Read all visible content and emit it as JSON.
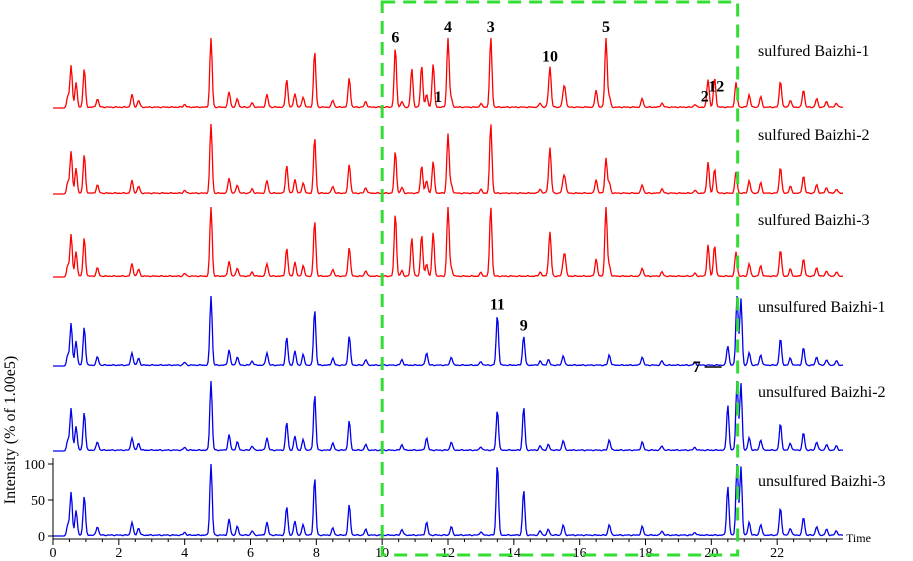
{
  "chart_data": {
    "type": "line",
    "title": "",
    "ylabel": "Intensity (% of 1.00e5)",
    "xlabel": "Time",
    "xlim": [
      0,
      24
    ],
    "ylim": [
      0,
      100
    ],
    "x_ticks": [
      0,
      2,
      4,
      6,
      8,
      10,
      12,
      14,
      16,
      18,
      20,
      22
    ],
    "x_tick_labels": [
      "0",
      "2",
      "4",
      "6",
      "8",
      "10",
      "12",
      "14",
      "16",
      "18",
      "20",
      "22"
    ],
    "y_ticks": [
      0,
      50,
      100
    ],
    "y_tick_labels": [
      "0",
      "50",
      "100"
    ],
    "highlight_region": {
      "x": [
        10,
        20.8
      ],
      "color": "#33dd33",
      "style": "dashed"
    },
    "colors": {
      "sulfured": "#ff0000",
      "unsulfured": "#0000ee",
      "highlight": "#33dd33"
    },
    "common_peaks": [
      [
        0.45,
        15
      ],
      [
        0.55,
        60
      ],
      [
        0.7,
        35
      ],
      [
        0.95,
        55
      ],
      [
        1.35,
        12
      ],
      [
        2.4,
        18
      ],
      [
        2.6,
        10
      ],
      [
        4.0,
        4
      ],
      [
        4.8,
        100
      ],
      [
        5.35,
        22
      ],
      [
        5.6,
        12
      ],
      [
        6.05,
        6
      ],
      [
        6.5,
        18
      ],
      [
        7.1,
        40
      ],
      [
        7.35,
        20
      ],
      [
        7.6,
        15
      ],
      [
        7.95,
        80
      ],
      [
        8.5,
        10
      ],
      [
        9.0,
        42
      ],
      [
        9.5,
        8
      ],
      [
        10.6,
        8
      ],
      [
        11.35,
        18
      ],
      [
        12.1,
        12
      ],
      [
        13.0,
        5
      ],
      [
        14.8,
        6
      ],
      [
        15.05,
        8
      ],
      [
        15.5,
        14
      ],
      [
        16.9,
        15
      ],
      [
        17.9,
        12
      ],
      [
        18.5,
        6
      ],
      [
        19.5,
        4
      ],
      [
        21.15,
        18
      ],
      [
        21.5,
        15
      ],
      [
        22.1,
        38
      ],
      [
        22.4,
        10
      ],
      [
        22.8,
        25
      ],
      [
        23.2,
        12
      ],
      [
        23.5,
        8
      ],
      [
        23.8,
        6
      ]
    ],
    "series": [
      {
        "name": "sulfured Baizhi-1",
        "color": "#ff0000",
        "peaks": [
          [
            10.4,
            85
          ],
          [
            10.9,
            55
          ],
          [
            11.2,
            60
          ],
          [
            11.55,
            62
          ],
          [
            12.0,
            100
          ],
          [
            13.3,
            100
          ],
          [
            15.1,
            55
          ],
          [
            15.55,
            25
          ],
          [
            16.5,
            25
          ],
          [
            16.8,
            100
          ],
          [
            19.9,
            40
          ],
          [
            20.1,
            42
          ],
          [
            20.75,
            35
          ]
        ]
      },
      {
        "name": "sulfured Baizhi-2",
        "color": "#ff0000",
        "peaks": [
          [
            10.4,
            60
          ],
          [
            11.2,
            40
          ],
          [
            11.55,
            45
          ],
          [
            12.0,
            85
          ],
          [
            13.3,
            100
          ],
          [
            15.1,
            62
          ],
          [
            15.55,
            20
          ],
          [
            16.5,
            20
          ],
          [
            16.8,
            50
          ],
          [
            19.9,
            45
          ],
          [
            20.1,
            35
          ],
          [
            20.75,
            30
          ]
        ]
      },
      {
        "name": "sulfured Baizhi-3",
        "color": "#ff0000",
        "peaks": [
          [
            10.4,
            90
          ],
          [
            10.9,
            55
          ],
          [
            11.2,
            60
          ],
          [
            11.55,
            62
          ],
          [
            12.0,
            100
          ],
          [
            13.3,
            100
          ],
          [
            15.1,
            60
          ],
          [
            15.55,
            28
          ],
          [
            16.5,
            25
          ],
          [
            16.8,
            100
          ],
          [
            19.9,
            45
          ],
          [
            20.1,
            45
          ],
          [
            20.75,
            35
          ]
        ]
      },
      {
        "name": "unsulfured Baizhi-1",
        "color": "#0000ee",
        "peaks": [
          [
            13.5,
            72
          ],
          [
            14.3,
            42
          ],
          [
            20.5,
            28
          ],
          [
            20.78,
            100
          ],
          [
            20.9,
            95
          ]
        ]
      },
      {
        "name": "unsulfured Baizhi-2",
        "color": "#0000ee",
        "peaks": [
          [
            13.5,
            58
          ],
          [
            14.3,
            62
          ],
          [
            20.5,
            65
          ],
          [
            20.78,
            100
          ],
          [
            20.9,
            95
          ]
        ]
      },
      {
        "name": "unsulfured Baizhi-3",
        "color": "#0000ee",
        "peaks": [
          [
            13.5,
            100
          ],
          [
            14.3,
            63
          ],
          [
            20.5,
            68
          ],
          [
            20.78,
            100
          ],
          [
            20.9,
            95
          ]
        ]
      }
    ],
    "annotations": [
      {
        "text": "6",
        "x": 10.4,
        "series": 0
      },
      {
        "text": "4",
        "x": 12.0,
        "series": 0
      },
      {
        "text": "1",
        "x": 11.7,
        "series": 0
      },
      {
        "text": "3",
        "x": 13.3,
        "series": 0
      },
      {
        "text": "10",
        "x": 15.1,
        "series": 0
      },
      {
        "text": "5",
        "x": 16.8,
        "series": 0
      },
      {
        "text": "2",
        "x": 19.8,
        "series": 0
      },
      {
        "text": "12",
        "x": 20.15,
        "series": 0
      },
      {
        "text": "11",
        "x": 13.5,
        "series": 3
      },
      {
        "text": "9",
        "x": 14.3,
        "series": 3
      },
      {
        "text": "7",
        "x": 20.1,
        "series": 3
      }
    ]
  }
}
